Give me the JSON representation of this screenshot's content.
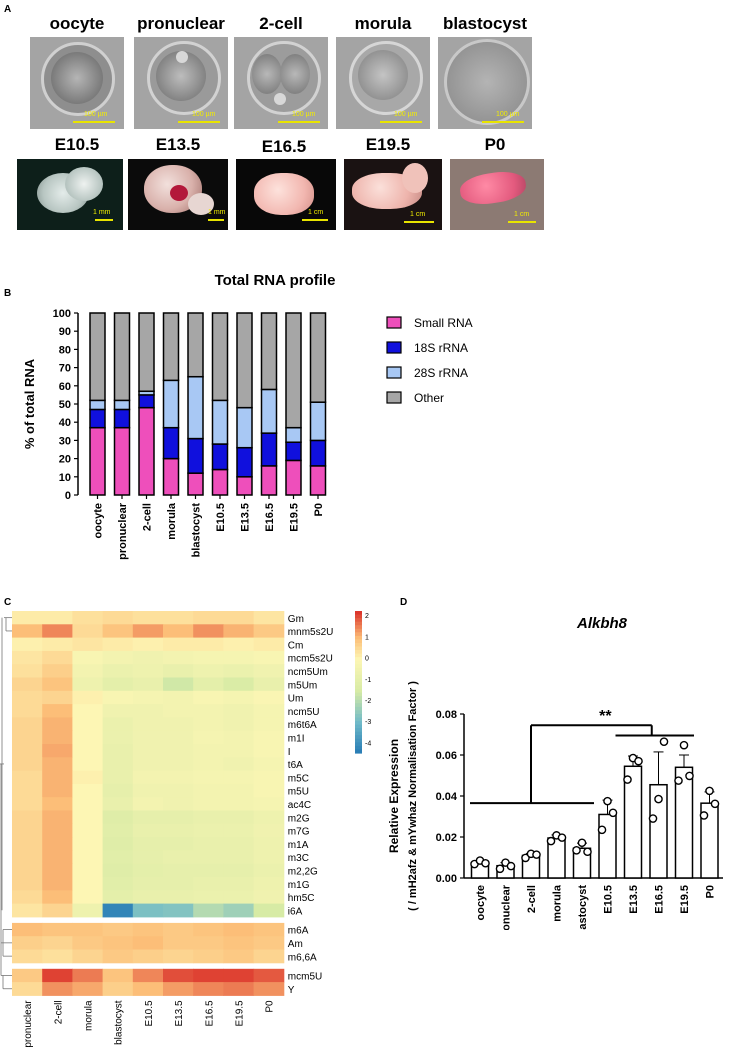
{
  "panels": {
    "a": "A",
    "b": "B",
    "c": "C",
    "d": "D"
  },
  "panel_a": {
    "stages_row1": [
      {
        "label": "oocyte",
        "scale": "100 µm"
      },
      {
        "label": "pronuclear",
        "scale": "100 µm"
      },
      {
        "label": "2-cell",
        "scale": "100 µm"
      },
      {
        "label": "morula",
        "scale": "100 µm"
      },
      {
        "label": "blastocyst",
        "scale": "100 µm"
      }
    ],
    "stages_row2": [
      {
        "label": "E10.5",
        "scale": "1 mm"
      },
      {
        "label": "E13.5",
        "scale": "1 mm"
      },
      {
        "label": "E16.5",
        "scale": "1 cm"
      },
      {
        "label": "E19.5",
        "scale": "1 cm"
      },
      {
        "label": "P0",
        "scale": "1 cm"
      }
    ]
  },
  "chart_data": [
    {
      "type": "bar",
      "stacked": true,
      "title": "Total RNA profile",
      "ylabel": "% of total RNA",
      "xlabel": "",
      "ylim": [
        0,
        100
      ],
      "yticks": [
        0,
        10,
        20,
        30,
        40,
        50,
        60,
        70,
        80,
        90,
        100
      ],
      "categories": [
        "oocyte",
        "pronuclear",
        "2-cell",
        "morula",
        "blastocyst",
        "E10.5",
        "E13.5",
        "E16.5",
        "E19.5",
        "P0"
      ],
      "legend_position": "right",
      "series": [
        {
          "name": "Small RNA",
          "color": "#ee4fbb",
          "values": [
            37,
            37,
            48,
            20,
            12,
            14,
            10,
            16,
            19,
            16
          ]
        },
        {
          "name": "18S rRNA",
          "color": "#1010dd",
          "values": [
            10,
            10,
            7,
            17,
            19,
            14,
            16,
            18,
            10,
            14
          ]
        },
        {
          "name": "28S rRNA",
          "color": "#a8c8f4",
          "values": [
            5,
            5,
            2,
            26,
            34,
            24,
            22,
            24,
            8,
            21
          ]
        },
        {
          "name": "Other",
          "color": "#a6a6a6",
          "values": [
            48,
            48,
            43,
            37,
            35,
            48,
            52,
            42,
            63,
            49
          ]
        }
      ]
    },
    {
      "type": "heatmap",
      "columns": [
        "pronuclear",
        "2-cell",
        "morula",
        "blastocyst",
        "E10.5",
        "E13.5",
        "E16.5",
        "E19.5",
        "P0"
      ],
      "rows": [
        "Gm",
        "mnm5s2U",
        "Cm",
        "mcm5s2U",
        "ncm5Um",
        "m5Um",
        "Um",
        "ncm5U",
        "m6t6A",
        "m1I",
        "I",
        "t6A",
        "m5C",
        "m5U",
        "ac4C",
        "m2G",
        "m7G",
        "m1A",
        "m3C",
        "m2,2G",
        "m1G",
        "hm5C",
        "i6A",
        "m6A",
        "Am",
        "m6,6A",
        "mcm5U",
        "Y"
      ],
      "colorbar_ticks": [
        2,
        1,
        0,
        -1,
        -2,
        -3,
        -4
      ],
      "colorbar_range": [
        -4.5,
        2.2
      ],
      "values": [
        [
          0.2,
          0.2,
          0.4,
          0.5,
          0.4,
          0.4,
          0.5,
          0.5,
          0.3
        ],
        [
          1.0,
          1.5,
          0.5,
          0.9,
          1.3,
          1.0,
          1.4,
          1.1,
          0.8
        ],
        [
          0.1,
          0.2,
          0.3,
          0.2,
          0.1,
          0.2,
          0.2,
          0.1,
          0.2
        ],
        [
          0.3,
          0.5,
          -0.2,
          -0.4,
          -0.5,
          -0.4,
          -0.3,
          -0.3,
          -0.2
        ],
        [
          0.4,
          0.7,
          -0.4,
          -0.7,
          -0.6,
          -0.8,
          -0.6,
          -0.7,
          -0.5
        ],
        [
          0.6,
          0.9,
          -0.6,
          -1.0,
          -0.8,
          -1.6,
          -1.0,
          -1.4,
          -0.8
        ],
        [
          0.5,
          0.6,
          0.1,
          -0.2,
          -0.3,
          -0.4,
          -0.2,
          -0.3,
          -0.1
        ],
        [
          0.5,
          1.0,
          0.0,
          -0.5,
          -0.5,
          -0.4,
          -0.4,
          -0.5,
          -0.3
        ],
        [
          0.6,
          1.1,
          0.0,
          -0.7,
          -0.5,
          -0.5,
          -0.4,
          -0.5,
          -0.3
        ],
        [
          0.6,
          1.1,
          0.0,
          -0.7,
          -0.5,
          -0.5,
          -0.3,
          -0.4,
          -0.2
        ],
        [
          0.6,
          1.2,
          0.0,
          -0.8,
          -0.5,
          -0.5,
          -0.4,
          -0.4,
          -0.2
        ],
        [
          0.6,
          1.1,
          0.0,
          -0.8,
          -0.5,
          -0.5,
          -0.4,
          -0.5,
          -0.3
        ],
        [
          0.5,
          1.1,
          0.1,
          -0.8,
          -0.4,
          -0.4,
          -0.3,
          -0.3,
          -0.2
        ],
        [
          0.5,
          1.1,
          0.0,
          -0.9,
          -0.5,
          -0.5,
          -0.4,
          -0.4,
          -0.2
        ],
        [
          0.5,
          1.0,
          0.0,
          -0.8,
          -0.4,
          -0.5,
          -0.4,
          -0.4,
          -0.3
        ],
        [
          0.6,
          1.1,
          0.0,
          -1.2,
          -0.9,
          -0.9,
          -0.8,
          -0.8,
          -0.6
        ],
        [
          0.6,
          1.1,
          0.0,
          -1.1,
          -0.8,
          -0.8,
          -0.7,
          -0.7,
          -0.5
        ],
        [
          0.6,
          1.1,
          0.0,
          -1.2,
          -0.9,
          -0.9,
          -0.8,
          -0.8,
          -0.6
        ],
        [
          0.6,
          1.1,
          0.0,
          -1.1,
          -0.9,
          -0.8,
          -0.8,
          -0.8,
          -0.6
        ],
        [
          0.6,
          1.1,
          0.0,
          -1.2,
          -1.0,
          -0.9,
          -0.9,
          -0.9,
          -0.7
        ],
        [
          0.6,
          1.1,
          0.0,
          -1.1,
          -0.9,
          -0.9,
          -0.8,
          -0.8,
          -0.6
        ],
        [
          0.5,
          1.0,
          0.0,
          -1.0,
          -0.8,
          -0.8,
          -0.7,
          -0.7,
          -0.5
        ],
        [
          0.3,
          0.6,
          -0.6,
          -4.2,
          -2.8,
          -2.7,
          -2.0,
          -2.3,
          -1.5
        ],
        [
          1.0,
          0.9,
          0.9,
          0.8,
          0.9,
          0.8,
          0.9,
          1.0,
          0.9
        ],
        [
          0.7,
          0.6,
          0.8,
          0.9,
          1.0,
          0.8,
          0.8,
          0.9,
          0.8
        ],
        [
          0.5,
          0.4,
          0.6,
          0.8,
          0.7,
          0.6,
          0.7,
          0.8,
          0.6
        ],
        [
          0.8,
          2.1,
          1.6,
          0.9,
          1.5,
          2.0,
          2.1,
          2.1,
          1.9
        ],
        [
          0.5,
          1.4,
          1.2,
          0.7,
          1.0,
          1.3,
          1.5,
          1.6,
          1.4
        ]
      ]
    },
    {
      "type": "bar",
      "title": "Alkbh8",
      "ylabel": "Relative Expression",
      "ylabel2": "( / mH2afz & mYwhaz Normalisation Factor )",
      "ylim": [
        0,
        0.08
      ],
      "yticks": [
        "0.00",
        "0.02",
        "0.04",
        "0.06",
        "0.08"
      ],
      "categories": [
        "oocyte",
        "pronuclear",
        "2-cell",
        "morula",
        "blastocyst",
        "E10.5",
        "E13.5",
        "E16.5",
        "E19.5",
        "P0"
      ],
      "values": [
        0.0075,
        0.006,
        0.011,
        0.0195,
        0.0145,
        0.031,
        0.0545,
        0.0455,
        0.054,
        0.0365
      ],
      "errors": [
        0.001,
        0.0015,
        0.001,
        0.0015,
        0.0025,
        0.007,
        0.005,
        0.016,
        0.006,
        0.0055
      ],
      "points": [
        [
          0.0068,
          0.0085,
          0.0072
        ],
        [
          0.0045,
          0.0075,
          0.0058
        ],
        [
          0.0098,
          0.0118,
          0.0114
        ],
        [
          0.018,
          0.0208,
          0.0197
        ],
        [
          0.0135,
          0.0172,
          0.0128
        ],
        [
          0.0235,
          0.0375,
          0.0318
        ],
        [
          0.048,
          0.0585,
          0.057
        ],
        [
          0.029,
          0.0385,
          0.0665
        ],
        [
          0.0475,
          0.0648,
          0.0498
        ],
        [
          0.0305,
          0.0425,
          0.0362
        ]
      ],
      "significance": "**"
    }
  ]
}
